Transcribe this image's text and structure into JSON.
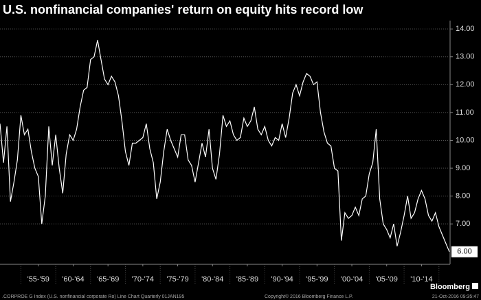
{
  "chart_data": {
    "type": "line",
    "title": "U.S. nonfinancial companies' return on equity hits record low",
    "x": [
      1952,
      1952.5,
      1953,
      1953.5,
      1954,
      1954.5,
      1955,
      1955.5,
      1956,
      1956.5,
      1957,
      1957.5,
      1958,
      1958.5,
      1959,
      1959.5,
      1960,
      1960.5,
      1961,
      1961.5,
      1962,
      1962.5,
      1963,
      1963.5,
      1964,
      1964.5,
      1965,
      1965.5,
      1966,
      1966.5,
      1967,
      1967.5,
      1968,
      1968.5,
      1969,
      1969.5,
      1970,
      1970.5,
      1971,
      1971.5,
      1972,
      1972.5,
      1973,
      1973.5,
      1974,
      1974.5,
      1975,
      1975.5,
      1976,
      1976.5,
      1977,
      1977.5,
      1978,
      1978.5,
      1979,
      1979.5,
      1980,
      1980.5,
      1981,
      1981.5,
      1982,
      1982.5,
      1983,
      1983.5,
      1984,
      1984.5,
      1985,
      1985.5,
      1986,
      1986.5,
      1987,
      1987.5,
      1988,
      1988.5,
      1989,
      1989.5,
      1990,
      1990.5,
      1991,
      1991.5,
      1992,
      1992.5,
      1993,
      1993.5,
      1994,
      1994.5,
      1995,
      1995.5,
      1996,
      1996.5,
      1997,
      1997.5,
      1998,
      1998.5,
      1999,
      1999.5,
      2000,
      2000.5,
      2001,
      2001.5,
      2002,
      2002.5,
      2003,
      2003.5,
      2004,
      2004.5,
      2005,
      2005.5,
      2006,
      2006.5,
      2007,
      2007.5,
      2008,
      2008.5,
      2009,
      2009.5,
      2010,
      2010.5,
      2011,
      2011.5,
      2012,
      2012.5,
      2013,
      2013.5,
      2014,
      2014.5,
      2015,
      2015.5,
      2016,
      2016.5
    ],
    "series": [
      {
        "color": "#ffffff",
        "values": [
          10.6,
          9.2,
          10.5,
          7.8,
          8.5,
          9.3,
          10.9,
          10.2,
          10.4,
          9.6,
          9.0,
          8.7,
          7.0,
          8.0,
          10.5,
          9.1,
          10.2,
          9.0,
          8.1,
          9.5,
          10.2,
          10.0,
          10.4,
          11.2,
          11.8,
          11.9,
          12.9,
          13.0,
          13.6,
          12.9,
          12.2,
          12.0,
          12.3,
          12.1,
          11.6,
          10.7,
          9.6,
          9.1,
          9.9,
          9.9,
          10.0,
          10.1,
          10.6,
          9.7,
          9.2,
          7.9,
          8.5,
          9.6,
          10.4,
          10.0,
          9.7,
          9.4,
          10.2,
          10.2,
          9.3,
          9.1,
          8.5,
          9.2,
          9.9,
          9.4,
          10.4,
          9.0,
          8.6,
          9.5,
          10.9,
          10.5,
          10.7,
          10.2,
          10.0,
          10.1,
          10.8,
          10.5,
          10.7,
          11.2,
          10.4,
          10.2,
          10.5,
          10.0,
          9.8,
          10.1,
          10.0,
          10.6,
          10.1,
          10.8,
          11.7,
          12.0,
          11.6,
          12.1,
          12.4,
          12.3,
          12.0,
          12.1,
          11.0,
          10.3,
          9.9,
          9.8,
          9.0,
          8.9,
          6.4,
          7.4,
          7.2,
          7.3,
          7.6,
          7.3,
          7.9,
          8.0,
          8.8,
          9.2,
          10.4,
          7.9,
          7.0,
          6.8,
          6.5,
          7.0,
          6.2,
          6.7,
          7.3,
          8.0,
          7.2,
          7.4,
          7.9,
          8.2,
          7.9,
          7.3,
          7.1,
          7.4,
          6.9,
          6.6,
          6.3,
          6.0
        ]
      }
    ],
    "last_value_label": "6.00",
    "xlim": [
      1952,
      2016.6
    ],
    "xticks": [
      {
        "value": 1957.5,
        "label": "'55-'59"
      },
      {
        "value": 1962.5,
        "label": "'60-'64"
      },
      {
        "value": 1967.5,
        "label": "'65-'69"
      },
      {
        "value": 1972.5,
        "label": "'70-'74"
      },
      {
        "value": 1977.5,
        "label": "'75-'79"
      },
      {
        "value": 1982.5,
        "label": "'80-'84"
      },
      {
        "value": 1987.5,
        "label": "'85-'89"
      },
      {
        "value": 1992.5,
        "label": "'90-'94"
      },
      {
        "value": 1997.5,
        "label": "'95-'99"
      },
      {
        "value": 2002.5,
        "label": "'00-'04"
      },
      {
        "value": 2007.5,
        "label": "'05-'09"
      },
      {
        "value": 2012.5,
        "label": "'10-'14"
      }
    ],
    "ylim": [
      5.55,
      14.3
    ],
    "yticks": [
      {
        "value": 7,
        "label": "7.00"
      },
      {
        "value": 8,
        "label": "8.00"
      },
      {
        "value": 9,
        "label": "9.00"
      },
      {
        "value": 10,
        "label": "10.00"
      },
      {
        "value": 11,
        "label": "11.00"
      },
      {
        "value": 12,
        "label": "12.00"
      },
      {
        "value": 13,
        "label": "13.00"
      },
      {
        "value": 14,
        "label": "14.00"
      }
    ],
    "grid": true
  },
  "footer": {
    "source": ".CORPROE G Index (U.S. nonfinancial corporate Ro) Line Chart  Quarterly 01JAN195",
    "copyright": "Copyright© 2016 Bloomberg Finance L.P.",
    "timestamp": "21-Oct-2016 09:35:47",
    "brand": "Bloomberg"
  }
}
